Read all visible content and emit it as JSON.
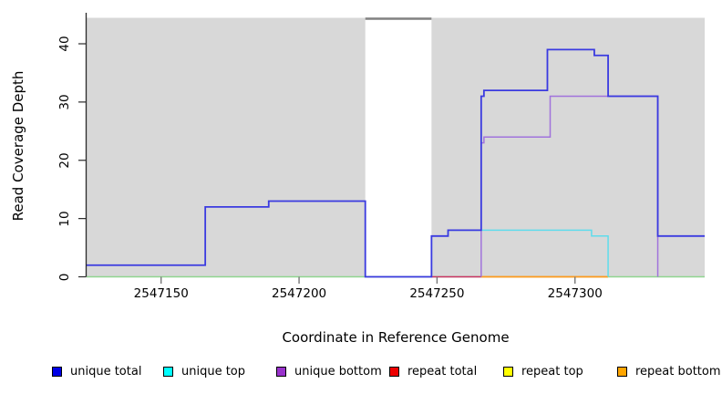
{
  "figure": {
    "background": "#ffffff",
    "plot_background": "#d8d8d8",
    "gap_background": "#ffffff",
    "gap_cap_color": "#808080",
    "axis_color": "#2a2a2a",
    "x_tick_color": "#777777"
  },
  "chart_data": {
    "type": "line",
    "subtype": "step-coverage",
    "title": "",
    "xlabel": "Coordinate in Reference Genome",
    "ylabel": "Read Coverage Depth",
    "xlim": [
      2547123,
      2547347
    ],
    "ylim": [
      0,
      44.4
    ],
    "x_ticks": [
      2547150,
      2547200,
      2547250,
      2547300
    ],
    "y_ticks": [
      0,
      10,
      20,
      30,
      40
    ],
    "grid": false,
    "legend_position": "bottom",
    "shaded_regions": [
      {
        "from": 2547123,
        "to": 2547224,
        "color": "#d8d8d8"
      },
      {
        "from": 2547248,
        "to": 2547347,
        "color": "#d8d8d8"
      }
    ],
    "gap_region": {
      "from": 2547224,
      "to": 2547248,
      "cap_color": "#808080"
    },
    "baseline": {
      "name": "zero-baseline",
      "color": "#90d590",
      "stroke_width": 1.4,
      "points": [
        [
          2547123,
          0
        ],
        [
          2547347,
          0
        ]
      ]
    },
    "series": [
      {
        "name": "repeat bottom",
        "color": "#ff9a1e",
        "stroke_width": 1.8,
        "points": [
          [
            2547266,
            0
          ],
          [
            2547312,
            0
          ]
        ]
      },
      {
        "name": "repeat total",
        "color": "#cc3366",
        "stroke_width": 1.5,
        "points": [
          [
            2547248,
            0
          ],
          [
            2547266,
            0
          ]
        ]
      },
      {
        "name": "repeat top",
        "color": "#ffff00",
        "stroke_width": 1.5,
        "points": []
      },
      {
        "name": "unique bottom",
        "color": "#a173dc",
        "stroke_width": 1.5,
        "points": [
          [
            2547266,
            0
          ],
          [
            2547266,
            23
          ],
          [
            2547267,
            23
          ],
          [
            2547267,
            24
          ],
          [
            2547291,
            24
          ],
          [
            2547291,
            31
          ],
          [
            2547330,
            31
          ],
          [
            2547330,
            0
          ]
        ]
      },
      {
        "name": "unique top",
        "color": "#5fdcec",
        "stroke_width": 1.5,
        "points": [
          [
            2547248,
            0
          ],
          [
            2547248,
            7
          ],
          [
            2547254,
            7
          ],
          [
            2547254,
            8
          ],
          [
            2547306,
            8
          ],
          [
            2547306,
            7
          ],
          [
            2547312,
            7
          ],
          [
            2547312,
            0
          ]
        ]
      },
      {
        "name": "unique total",
        "color": "#3a3ae0",
        "stroke_width": 1.8,
        "points": [
          [
            2547123,
            2
          ],
          [
            2547166,
            2
          ],
          [
            2547166,
            12
          ],
          [
            2547189,
            12
          ],
          [
            2547189,
            13
          ],
          [
            2547224,
            13
          ],
          [
            2547224,
            0
          ],
          [
            2547248,
            0
          ],
          [
            2547248,
            7
          ],
          [
            2547254,
            7
          ],
          [
            2547254,
            8
          ],
          [
            2547266,
            8
          ],
          [
            2547266,
            31
          ],
          [
            2547267,
            31
          ],
          [
            2547267,
            32
          ],
          [
            2547290,
            32
          ],
          [
            2547290,
            39
          ],
          [
            2547307,
            39
          ],
          [
            2547307,
            38
          ],
          [
            2547312,
            38
          ],
          [
            2547312,
            31
          ],
          [
            2547330,
            31
          ],
          [
            2547330,
            7
          ],
          [
            2547347,
            7
          ]
        ]
      }
    ]
  },
  "legend": {
    "items": [
      {
        "label": "unique total",
        "color": "#0000e6"
      },
      {
        "label": "unique top",
        "color": "#00ffff"
      },
      {
        "label": "unique bottom",
        "color": "#9932cc"
      },
      {
        "label": "repeat total",
        "color": "#ee0000"
      },
      {
        "label": "repeat top",
        "color": "#ffff00"
      },
      {
        "label": "repeat bottom",
        "color": "#ffa500"
      }
    ]
  }
}
